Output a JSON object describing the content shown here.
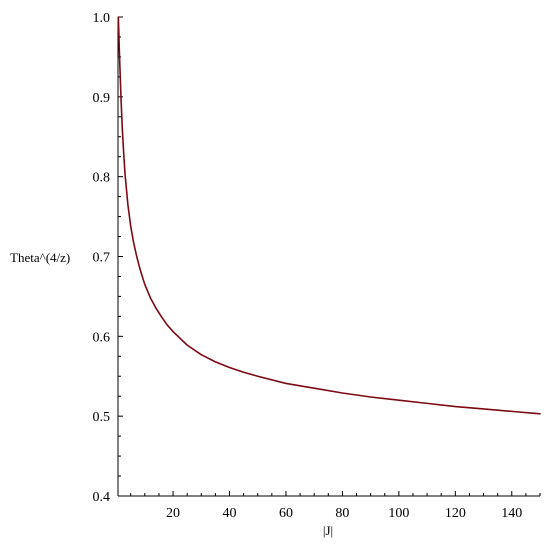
{
  "chart_data": {
    "type": "line",
    "title": "",
    "xlabel": "|J|",
    "ylabel": "Theta^(4/z)",
    "xlim": [
      0.5,
      150
    ],
    "ylim": [
      0.4,
      1.0
    ],
    "x_ticks": [
      20,
      40,
      60,
      80,
      100,
      120,
      140
    ],
    "y_ticks": [
      0.4,
      0.5,
      0.6,
      0.7,
      0.8,
      0.9,
      1.0
    ],
    "grid": false,
    "legend": "none",
    "series": [
      {
        "color": "#7b0a14",
        "points": [
          [
            0.6,
            1.0
          ],
          [
            0.8,
            0.98
          ],
          [
            1.0,
            0.955
          ],
          [
            1.3,
            0.925
          ],
          [
            1.6,
            0.895
          ],
          [
            2,
            0.862
          ],
          [
            2.5,
            0.83
          ],
          [
            3,
            0.803
          ],
          [
            4,
            0.765
          ],
          [
            5,
            0.738
          ],
          [
            6,
            0.718
          ],
          [
            7,
            0.702
          ],
          [
            8,
            0.688
          ],
          [
            9,
            0.676
          ],
          [
            10,
            0.665
          ],
          [
            12,
            0.648
          ],
          [
            14,
            0.635
          ],
          [
            16,
            0.624
          ],
          [
            18,
            0.614
          ],
          [
            20,
            0.606
          ],
          [
            25,
            0.589
          ],
          [
            30,
            0.577
          ],
          [
            35,
            0.568
          ],
          [
            40,
            0.561
          ],
          [
            45,
            0.555
          ],
          [
            50,
            0.55
          ],
          [
            60,
            0.541
          ],
          [
            70,
            0.535
          ],
          [
            80,
            0.529
          ],
          [
            90,
            0.524
          ],
          [
            100,
            0.52
          ],
          [
            110,
            0.516
          ],
          [
            120,
            0.512
          ],
          [
            130,
            0.509
          ],
          [
            140,
            0.506
          ],
          [
            150,
            0.503
          ]
        ]
      }
    ]
  }
}
